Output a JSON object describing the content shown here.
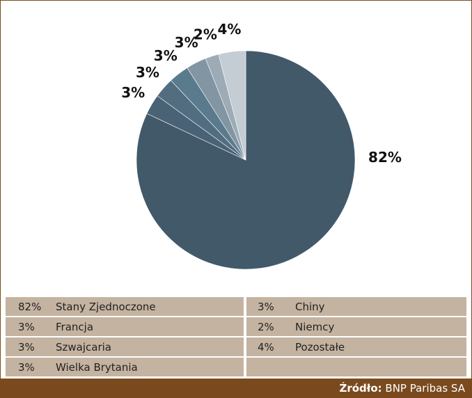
{
  "chart_data": {
    "type": "pie",
    "categories": [
      "Stany Zjednoczone",
      "Francja",
      "Szwajcaria",
      "Wielka Brytania",
      "Chiny",
      "Niemcy",
      "Pozostałe"
    ],
    "values": [
      82,
      3,
      3,
      3,
      3,
      2,
      4
    ],
    "value_labels": [
      "82%",
      "3%",
      "3%",
      "3%",
      "3%",
      "2%",
      "4%"
    ],
    "colors": [
      "#42596a",
      "#4a6275",
      "#526d80",
      "#5a7a8e",
      "#8295a3",
      "#9dabb6",
      "#c4ccd4"
    ],
    "source_label": "Źródło:",
    "source": "BNP Paribas SA"
  }
}
